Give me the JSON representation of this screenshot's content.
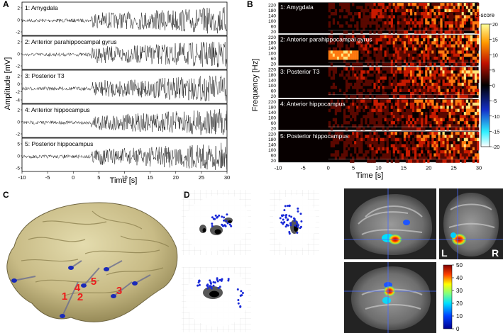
{
  "panels": {
    "A": "A",
    "B": "B",
    "C": "C",
    "D": "D"
  },
  "panel_a": {
    "ylabel": "Amplitude [mV]",
    "xlabel": "Time [s]",
    "xticks": [
      "-10",
      "-5",
      "0",
      "5",
      "10",
      "15",
      "20",
      "25",
      "30"
    ],
    "yticks": [
      "2",
      "0",
      "-2"
    ],
    "yticks_t3": [
      "2",
      "0",
      "-2",
      "-4"
    ],
    "yticks_ph": [
      "5",
      "0",
      "-5"
    ],
    "channels": [
      {
        "label": "1: Amygdala"
      },
      {
        "label": "2: Anterior parahippocampal gyrus"
      },
      {
        "label": "3: Posterior T3"
      },
      {
        "label": "4: Anterior hippocampus"
      },
      {
        "label": "5: Posterior hippocampus"
      }
    ]
  },
  "panel_b": {
    "ylabel": "Frequency [Hz]",
    "xlabel": "Time [s]",
    "xticks": [
      "-10",
      "-5",
      "0",
      "5",
      "10",
      "15",
      "20",
      "25",
      "30"
    ],
    "yticks": [
      "220",
      "200",
      "180",
      "160",
      "140",
      "120",
      "100",
      "80",
      "60",
      "40",
      "20"
    ],
    "yticks_short": [
      "220",
      "180",
      "140",
      "100",
      "60",
      "20"
    ],
    "colorbar_title": "z-score",
    "colorbar_ticks": [
      "20",
      "15",
      "10",
      "5",
      "0",
      "-5",
      "-10",
      "-15",
      "-20"
    ],
    "channels": [
      {
        "label": "1: Amygdala"
      },
      {
        "label": "2: Anterior parahippocampal gyrus"
      },
      {
        "label": "3: Posterior T3"
      },
      {
        "label": "4: Anterior hippocampus"
      },
      {
        "label": "5: Posterior hippocampus"
      }
    ]
  },
  "panel_c": {
    "electrode_labels": [
      "1",
      "2",
      "3",
      "4",
      "5"
    ]
  },
  "panel_d": {
    "mri_labels": {
      "left": "L",
      "right": "R"
    },
    "colorbar_ticks": [
      "50",
      "40",
      "30",
      "20",
      "10",
      "0"
    ]
  }
}
